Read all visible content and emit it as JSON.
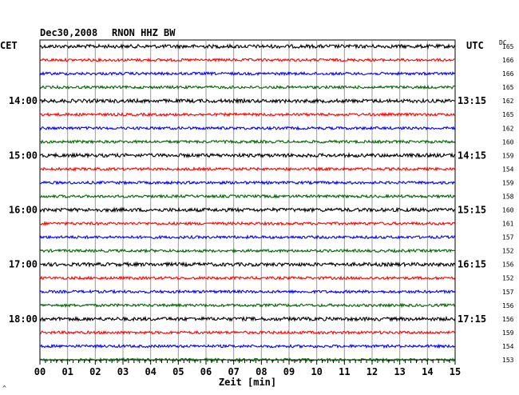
{
  "chart_data": {
    "type": "line",
    "subtype": "helicorder",
    "header_left": "Dec30,2008",
    "station": "RNON HHZ BW",
    "left_zone": "CET",
    "right_zone": "UTC",
    "dc_header": "DC",
    "xlabel": "Zeit [min]",
    "x_ticks": [
      "00",
      "01",
      "02",
      "03",
      "04",
      "05",
      "06",
      "07",
      "08",
      "09",
      "10",
      "11",
      "12",
      "13",
      "14",
      "15"
    ],
    "xlim": [
      0,
      15
    ],
    "trace_colors": [
      "#000000",
      "#ff0000",
      "#0000ff",
      "#006600"
    ],
    "left_hour_labels": [
      {
        "trace": 4,
        "label": "14:00"
      },
      {
        "trace": 8,
        "label": "15:00"
      },
      {
        "trace": 12,
        "label": "16:00"
      },
      {
        "trace": 16,
        "label": "17:00"
      },
      {
        "trace": 20,
        "label": "18:00"
      }
    ],
    "right_hour_labels": [
      {
        "trace": 4,
        "label": "13:15"
      },
      {
        "trace": 8,
        "label": "14:15"
      },
      {
        "trace": 12,
        "label": "15:15"
      },
      {
        "trace": 16,
        "label": "16:15"
      },
      {
        "trace": 20,
        "label": "17:15"
      }
    ],
    "dc_offsets": [
      165,
      166,
      166,
      165,
      162,
      165,
      162,
      160,
      159,
      154,
      159,
      158,
      160,
      161,
      157,
      152,
      156,
      152,
      157,
      156,
      156,
      159,
      154,
      153
    ],
    "bottom_left_mark": "^"
  }
}
